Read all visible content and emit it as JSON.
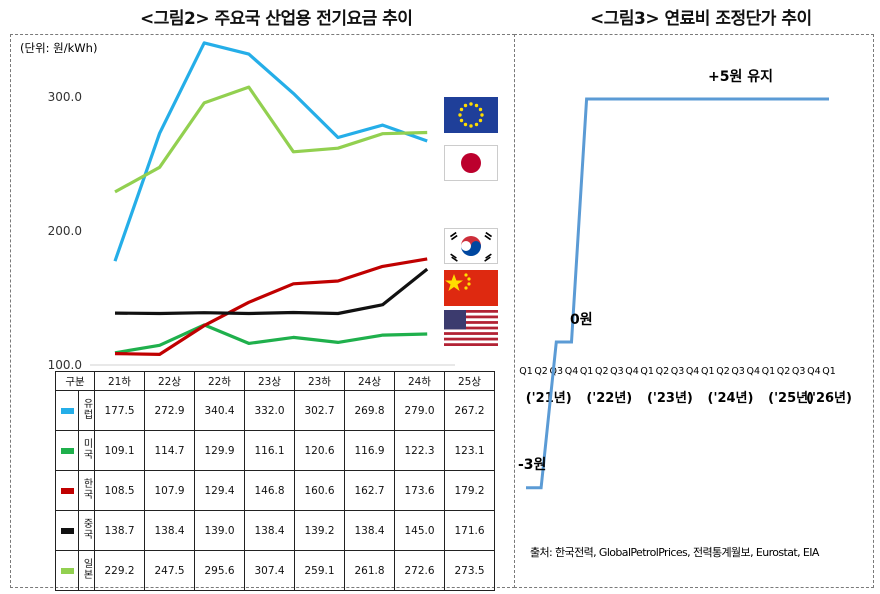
{
  "left_title": "<그림2> 주요국 산업용 전기요금 추이",
  "right_title": "<그림3> 연료비 조정단가 추이",
  "colors": {
    "europe": "#25aee8",
    "usa": "#1fb04c",
    "korea": "#c00000",
    "china": "#111111",
    "japan": "#92d050",
    "step": "#5b9bd5"
  },
  "flags": [
    "eu-flag",
    "japan-flag",
    "korea-flag",
    "china-flag",
    "usa-flag"
  ],
  "chart_data": [
    {
      "type": "line",
      "title": "<그림2> 주요국 산업용 전기요금 추이",
      "unit_label": "(단위: 원/kWh)",
      "categories": [
        "21하",
        "22상",
        "22하",
        "23상",
        "23하",
        "24상",
        "24하",
        "25상"
      ],
      "ylim": [
        100,
        350
      ],
      "yticks": [
        "100.0",
        "200.0",
        "300.0"
      ],
      "table_header": "구분",
      "series": [
        {
          "key": "europe",
          "name": "유럽",
          "values": [
            177.5,
            272.9,
            340.4,
            332.0,
            302.7,
            269.8,
            279.0,
            267.2
          ],
          "labels": [
            "177.5",
            "272.9",
            "340.4",
            "332.0",
            "302.7",
            "269.8",
            "279.0",
            "267.2"
          ]
        },
        {
          "key": "usa",
          "name": "미국",
          "values": [
            109.1,
            114.7,
            129.9,
            116.1,
            120.6,
            116.9,
            122.3,
            123.1
          ],
          "labels": [
            "109.1",
            "114.7",
            "129.9",
            "116.1",
            "120.6",
            "116.9",
            "122.3",
            "123.1"
          ]
        },
        {
          "key": "korea",
          "name": "한국",
          "values": [
            108.5,
            107.9,
            129.4,
            146.8,
            160.6,
            162.7,
            173.6,
            179.2
          ],
          "labels": [
            "108.5",
            "107.9",
            "129.4",
            "146.8",
            "160.6",
            "162.7",
            "173.6",
            "179.2"
          ]
        },
        {
          "key": "china",
          "name": "중국",
          "values": [
            138.7,
            138.4,
            139.0,
            138.4,
            139.2,
            138.4,
            145.0,
            171.6
          ],
          "labels": [
            "138.7",
            "138.4",
            "139.0",
            "138.4",
            "139.2",
            "138.4",
            "145.0",
            "171.6"
          ]
        },
        {
          "key": "japan",
          "name": "일본",
          "values": [
            229.2,
            247.5,
            295.6,
            307.4,
            259.1,
            261.8,
            272.6,
            273.5
          ],
          "labels": [
            "229.2",
            "247.5",
            "295.6",
            "307.4",
            "259.1",
            "261.8",
            "272.6",
            "273.5"
          ]
        }
      ]
    },
    {
      "type": "line",
      "title": "<그림3> 연료비 조정단가 추이",
      "quarter_ticks": [
        "Q1",
        "Q2",
        "Q3",
        "Q4",
        "Q1",
        "Q2",
        "Q3",
        "Q4",
        "Q1",
        "Q2",
        "Q3",
        "Q4",
        "Q1",
        "Q2",
        "Q3",
        "Q4",
        "Q1",
        "Q2",
        "Q3",
        "Q4",
        "Q1"
      ],
      "year_labels": [
        "('21년)",
        "('22년)",
        "('23년)",
        "('24년)",
        "('25년)",
        "('26년)"
      ],
      "year_label_positions": [
        1.5,
        5.5,
        9.5,
        13.5,
        17.5,
        20
      ],
      "step_points": [
        [
          0,
          -3
        ],
        [
          1,
          -3
        ],
        [
          2,
          0
        ],
        [
          3,
          0
        ],
        [
          4,
          5
        ],
        [
          20,
          5
        ]
      ],
      "ylim": [
        -3,
        5
      ],
      "annotations": {
        "minus": "-3원",
        "zero": "0원",
        "plus": "+5원 유지"
      },
      "source": "출처: 한국전력, GlobalPetrolPrices, 전력통계월보, Eurostat, EIA"
    }
  ]
}
